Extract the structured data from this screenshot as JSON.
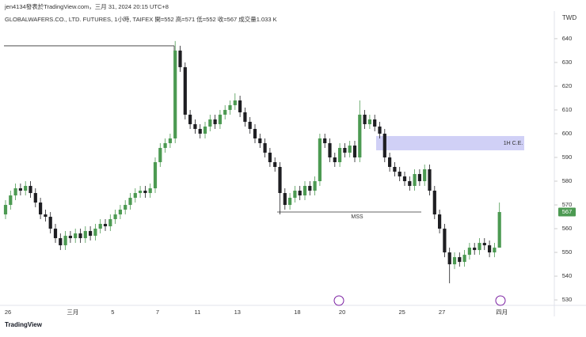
{
  "chart_data": {
    "type": "candlestick",
    "caption": "jen4134發表於TradingView.com，三月 31, 2024 20:15 UTC+8",
    "title": "GLOBALWAFERS.CO., LTD. FUTURES, 1小時, TAIFEX  開=552 高=571 低=552 收=567 成交量1.033 K",
    "currency": "TWD",
    "brand": "TradingView",
    "up_color": "#4c9a52",
    "down_color": "#1e1e22",
    "categories": [
      "26",
      null,
      null,
      null,
      null,
      null,
      null,
      null,
      null,
      null,
      null,
      null,
      null,
      "三月",
      null,
      null,
      null,
      null,
      null,
      null,
      null,
      "5",
      null,
      null,
      null,
      null,
      null,
      null,
      null,
      null,
      "7",
      null,
      null,
      null,
      null,
      null,
      null,
      null,
      "11",
      null,
      null,
      null,
      null,
      null,
      null,
      null,
      "13",
      null,
      null,
      null,
      null,
      null,
      null,
      null,
      null,
      null,
      null,
      null,
      "18",
      null,
      null,
      null,
      null,
      null,
      null,
      null,
      null,
      "20",
      null,
      null,
      null,
      null,
      null,
      null,
      null,
      null,
      null,
      null,
      null,
      "25",
      null,
      null,
      null,
      null,
      null,
      null,
      null,
      "27",
      null,
      null,
      null,
      null,
      null,
      null,
      null,
      null,
      null,
      null,
      null,
      "四月"
    ],
    "open": [
      566,
      570,
      574,
      577,
      576,
      578,
      575,
      571,
      566,
      565,
      560,
      556,
      553,
      557,
      556,
      558,
      556,
      559,
      557,
      560,
      562,
      561,
      564,
      566,
      568,
      570,
      573,
      575,
      576,
      575,
      577,
      588,
      594,
      596,
      598,
      635,
      628,
      608,
      604,
      602,
      600,
      603,
      606,
      604,
      608,
      610,
      612,
      614,
      609,
      605,
      602,
      598,
      596,
      592,
      588,
      586,
      575,
      570,
      573,
      576,
      574,
      578,
      576,
      580,
      598,
      596,
      590,
      588,
      594,
      592,
      595,
      590,
      608,
      604,
      606,
      603,
      600,
      590,
      586,
      584,
      582,
      580,
      578,
      583,
      580,
      585,
      576,
      566,
      560,
      550,
      545,
      548,
      546,
      549,
      552,
      551,
      554,
      553,
      550,
      552
    ],
    "high": [
      572,
      576,
      579,
      579,
      580,
      580,
      577,
      573,
      568,
      567,
      562,
      558,
      559,
      559,
      560,
      560,
      561,
      561,
      562,
      564,
      564,
      566,
      568,
      570,
      572,
      575,
      577,
      578,
      578,
      579,
      590,
      596,
      598,
      600,
      639,
      637,
      630,
      610,
      606,
      604,
      605,
      608,
      608,
      610,
      612,
      614,
      617,
      616,
      611,
      607,
      604,
      600,
      598,
      594,
      590,
      588,
      577,
      575,
      578,
      578,
      580,
      580,
      582,
      600,
      600,
      598,
      592,
      596,
      596,
      597,
      597,
      614,
      610,
      608,
      608,
      605,
      602,
      592,
      588,
      586,
      584,
      582,
      585,
      585,
      587,
      587,
      578,
      568,
      562,
      552,
      550,
      550,
      551,
      554,
      554,
      556,
      556,
      555,
      554,
      571
    ],
    "low": [
      564,
      568,
      572,
      574,
      574,
      573,
      569,
      564,
      563,
      558,
      554,
      551,
      551,
      554,
      554,
      554,
      554,
      555,
      555,
      558,
      559,
      559,
      562,
      564,
      566,
      568,
      571,
      573,
      573,
      573,
      575,
      586,
      592,
      594,
      596,
      626,
      606,
      602,
      600,
      598,
      598,
      601,
      602,
      602,
      606,
      608,
      610,
      607,
      603,
      600,
      596,
      594,
      590,
      586,
      584,
      566,
      568,
      568,
      571,
      572,
      572,
      574,
      574,
      578,
      594,
      588,
      586,
      586,
      590,
      590,
      588,
      588,
      602,
      602,
      601,
      598,
      588,
      584,
      582,
      580,
      578,
      576,
      576,
      578,
      578,
      574,
      564,
      558,
      548,
      537,
      543,
      544,
      544,
      547,
      549,
      549,
      551,
      548,
      548,
      552
    ],
    "close": [
      570,
      574,
      577,
      576,
      578,
      575,
      571,
      566,
      565,
      560,
      556,
      553,
      557,
      556,
      558,
      556,
      559,
      557,
      560,
      562,
      561,
      564,
      566,
      568,
      570,
      573,
      575,
      576,
      575,
      577,
      588,
      594,
      596,
      598,
      635,
      628,
      608,
      604,
      602,
      600,
      603,
      606,
      604,
      608,
      610,
      612,
      614,
      609,
      605,
      602,
      598,
      596,
      592,
      588,
      586,
      575,
      570,
      573,
      576,
      574,
      578,
      576,
      580,
      598,
      596,
      590,
      588,
      594,
      592,
      595,
      590,
      608,
      604,
      606,
      603,
      600,
      590,
      586,
      584,
      582,
      580,
      578,
      583,
      580,
      585,
      576,
      566,
      560,
      550,
      545,
      548,
      546,
      549,
      552,
      551,
      554,
      553,
      550,
      552,
      567
    ],
    "ylim": [
      527.7,
      646.3
    ],
    "yticks": [
      530,
      540,
      550,
      560,
      570,
      580,
      590,
      600,
      610,
      620,
      630,
      640
    ],
    "levels": [
      {
        "value": 637
      },
      {
        "value": 567,
        "label": "MSS"
      }
    ],
    "zones": [
      {
        "low": 593,
        "high": 599,
        "label": "1H C.E."
      }
    ]
  }
}
